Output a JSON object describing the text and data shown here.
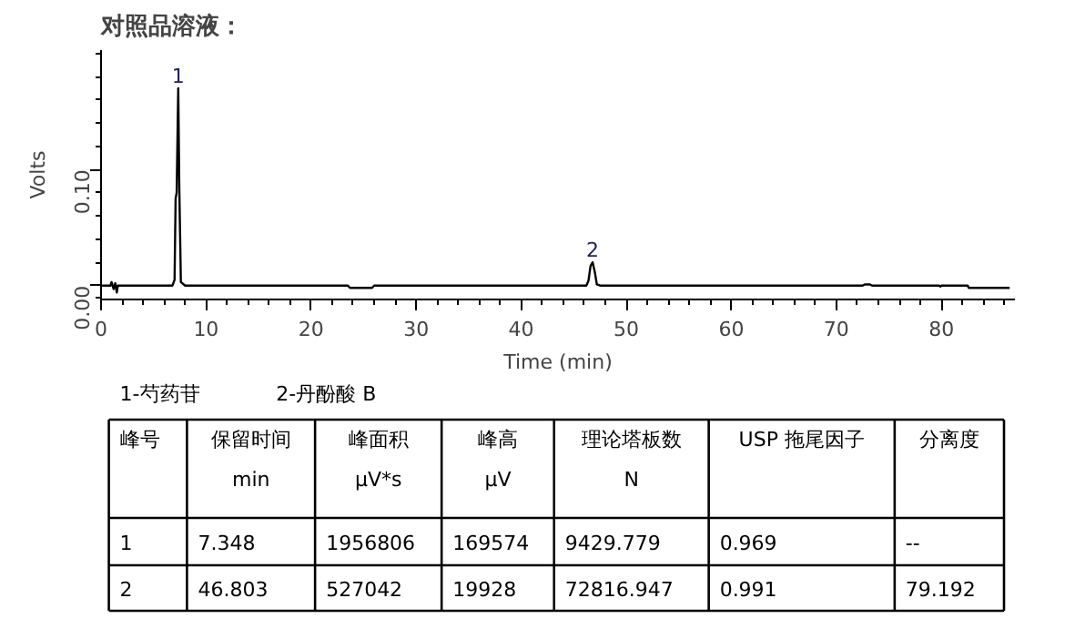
{
  "chart_data": {
    "type": "line",
    "title": "对照品溶液：",
    "xlabel": "Time (min)",
    "ylabel": "Volts",
    "x": [
      0,
      0.9,
      1.0,
      1.2,
      1.35,
      1.5,
      1.6,
      3,
      6.8,
      7.0,
      7.1,
      7.2,
      7.35,
      7.45,
      7.6,
      8,
      23.5,
      23.7,
      25.8,
      26.0,
      46.2,
      46.4,
      46.6,
      46.8,
      47.0,
      47.2,
      47.5,
      72.5,
      72.7,
      73.2,
      73.4,
      79.8,
      79.9,
      80,
      82.5,
      82.6,
      86.5
    ],
    "series": [
      {
        "color": "#000000",
        "values": [
          0,
          0,
          0.003,
          -0.003,
          0.002,
          -0.006,
          0,
          0,
          0,
          0.005,
          0.075,
          0.08,
          0.17,
          0.085,
          0.003,
          0,
          0,
          -0.002,
          -0.002,
          0,
          0,
          0.004,
          0.017,
          0.02,
          0.012,
          0.001,
          0,
          0,
          0.001,
          0.001,
          0,
          0,
          -0.001,
          0,
          0,
          -0.002,
          -0.002
        ]
      }
    ],
    "xlim": [
      0,
      87
    ],
    "ylim": [
      -0.012,
      0.203
    ],
    "xticks": [
      0,
      10,
      20,
      30,
      40,
      50,
      60,
      70,
      80,
      {
        "value": 2,
        "label": null
      },
      {
        "value": 4,
        "label": null
      },
      {
        "value": 6,
        "label": null
      },
      {
        "value": 8,
        "label": null
      },
      {
        "value": 12,
        "label": null
      },
      {
        "value": 14,
        "label": null
      },
      {
        "value": 16,
        "label": null
      },
      {
        "value": 18,
        "label": null
      },
      {
        "value": 22,
        "label": null
      },
      {
        "value": 24,
        "label": null
      },
      {
        "value": 26,
        "label": null
      },
      {
        "value": 28,
        "label": null
      },
      {
        "value": 32,
        "label": null
      },
      {
        "value": 34,
        "label": null
      },
      {
        "value": 36,
        "label": null
      },
      {
        "value": 38,
        "label": null
      },
      {
        "value": 42,
        "label": null
      },
      {
        "value": 44,
        "label": null
      },
      {
        "value": 46,
        "label": null
      },
      {
        "value": 48,
        "label": null
      },
      {
        "value": 52,
        "label": null
      },
      {
        "value": 54,
        "label": null
      },
      {
        "value": 56,
        "label": null
      },
      {
        "value": 58,
        "label": null
      },
      {
        "value": 62,
        "label": null
      },
      {
        "value": 64,
        "label": null
      },
      {
        "value": 66,
        "label": null
      },
      {
        "value": 68,
        "label": null
      },
      {
        "value": 72,
        "label": null
      },
      {
        "value": 74,
        "label": null
      },
      {
        "value": 76,
        "label": null
      },
      {
        "value": 78,
        "label": null
      },
      {
        "value": 82,
        "label": null
      },
      {
        "value": 84,
        "label": null
      },
      {
        "value": 86,
        "label": null
      }
    ],
    "yticks": [
      {
        "value": 0,
        "label": "0.00"
      },
      {
        "value": 0.1,
        "label": "0.10"
      },
      {
        "value": -0.01,
        "label": null
      },
      {
        "value": 0.02,
        "label": null
      },
      {
        "value": 0.04,
        "label": null
      },
      {
        "value": 0.06,
        "label": null
      },
      {
        "value": 0.08,
        "label": null
      },
      {
        "value": 0.12,
        "label": null
      },
      {
        "value": 0.14,
        "label": null
      },
      {
        "value": 0.16,
        "label": null
      },
      {
        "value": 0.18,
        "label": null
      },
      {
        "value": 0.2,
        "label": null
      }
    ],
    "grid": false,
    "marker": "none",
    "line_style": "solid",
    "annotations": [
      {
        "text": "1",
        "x": 7.35,
        "y": 0.17
      },
      {
        "text": "2",
        "x": 46.8,
        "y": 0.02
      },
      "1-芍药苷",
      "2-丹酚酸 B",
      "峰号",
      "保留时间\nmin",
      "峰面积\nμV*s",
      "峰高\nμV",
      "理论塔板数\nN",
      "USP 拖尾因子",
      "分离度",
      "1",
      "7.348",
      "1956806",
      "169574",
      "9429.779",
      "0.969",
      "--",
      "2",
      "46.803",
      "527042",
      "19928",
      "72816.947",
      "0.991",
      "79.192"
    ]
  }
}
